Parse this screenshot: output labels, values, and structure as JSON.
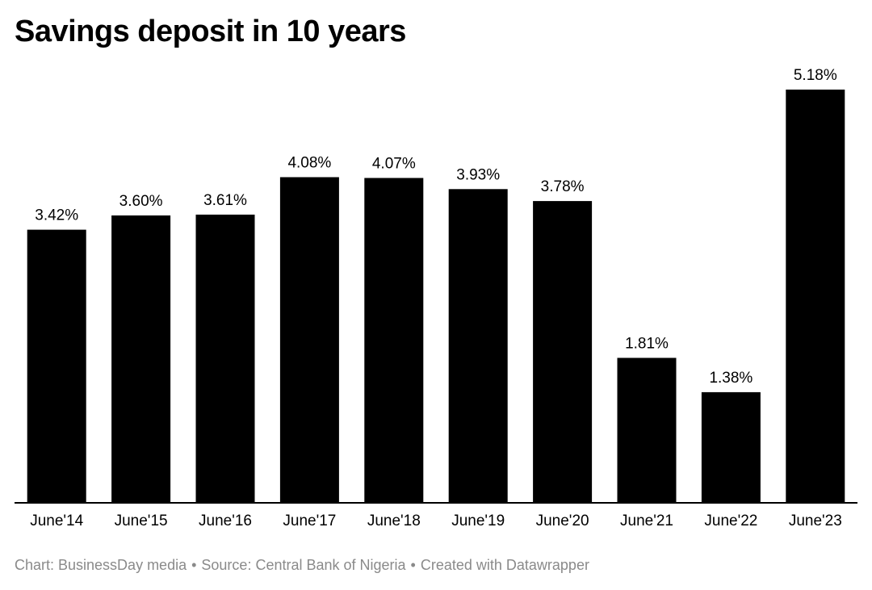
{
  "chart_data": {
    "type": "bar",
    "title": "Savings deposit in 10 years",
    "categories": [
      "June'14",
      "June'15",
      "June'16",
      "June'17",
      "June'18",
      "June'19",
      "June'20",
      "June'21",
      "June'22",
      "June'23"
    ],
    "values": [
      3.42,
      3.6,
      3.61,
      4.08,
      4.07,
      3.93,
      3.78,
      1.81,
      1.38,
      5.18
    ],
    "value_labels": [
      "3.42%",
      "3.60%",
      "3.61%",
      "4.08%",
      "4.07%",
      "3.93%",
      "3.78%",
      "1.81%",
      "1.38%",
      "5.18%"
    ],
    "xlabel": "",
    "ylabel": "",
    "ylim": [
      0,
      5.18
    ],
    "grid": false,
    "bar_color": "#000000"
  },
  "footer": {
    "chart_credit": "Chart: BusinessDay media",
    "source": "Source: Central Bank of Nigeria",
    "created_with": "Created with Datawrapper",
    "separator": "•"
  }
}
